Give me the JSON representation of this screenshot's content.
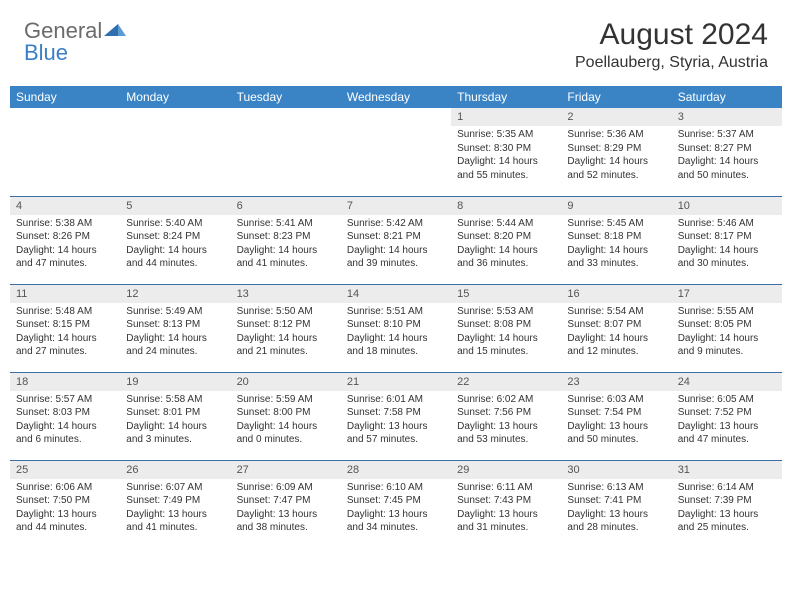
{
  "logo": {
    "text1": "General",
    "text2": "Blue"
  },
  "title": "August 2024",
  "location": "Poellauberg, Styria, Austria",
  "colors": {
    "header_bg": "#3a84c5",
    "header_text": "#ffffff",
    "daynum_bg": "#ececec",
    "row_border": "#3a6fa8",
    "logo_gray": "#6b6b6b",
    "logo_blue": "#3a7fc4",
    "text": "#333333"
  },
  "weekdays": [
    "Sunday",
    "Monday",
    "Tuesday",
    "Wednesday",
    "Thursday",
    "Friday",
    "Saturday"
  ],
  "weeks": [
    [
      null,
      null,
      null,
      null,
      {
        "n": "1",
        "sr": "Sunrise: 5:35 AM",
        "ss": "Sunset: 8:30 PM",
        "d1": "Daylight: 14 hours",
        "d2": "and 55 minutes."
      },
      {
        "n": "2",
        "sr": "Sunrise: 5:36 AM",
        "ss": "Sunset: 8:29 PM",
        "d1": "Daylight: 14 hours",
        "d2": "and 52 minutes."
      },
      {
        "n": "3",
        "sr": "Sunrise: 5:37 AM",
        "ss": "Sunset: 8:27 PM",
        "d1": "Daylight: 14 hours",
        "d2": "and 50 minutes."
      }
    ],
    [
      {
        "n": "4",
        "sr": "Sunrise: 5:38 AM",
        "ss": "Sunset: 8:26 PM",
        "d1": "Daylight: 14 hours",
        "d2": "and 47 minutes."
      },
      {
        "n": "5",
        "sr": "Sunrise: 5:40 AM",
        "ss": "Sunset: 8:24 PM",
        "d1": "Daylight: 14 hours",
        "d2": "and 44 minutes."
      },
      {
        "n": "6",
        "sr": "Sunrise: 5:41 AM",
        "ss": "Sunset: 8:23 PM",
        "d1": "Daylight: 14 hours",
        "d2": "and 41 minutes."
      },
      {
        "n": "7",
        "sr": "Sunrise: 5:42 AM",
        "ss": "Sunset: 8:21 PM",
        "d1": "Daylight: 14 hours",
        "d2": "and 39 minutes."
      },
      {
        "n": "8",
        "sr": "Sunrise: 5:44 AM",
        "ss": "Sunset: 8:20 PM",
        "d1": "Daylight: 14 hours",
        "d2": "and 36 minutes."
      },
      {
        "n": "9",
        "sr": "Sunrise: 5:45 AM",
        "ss": "Sunset: 8:18 PM",
        "d1": "Daylight: 14 hours",
        "d2": "and 33 minutes."
      },
      {
        "n": "10",
        "sr": "Sunrise: 5:46 AM",
        "ss": "Sunset: 8:17 PM",
        "d1": "Daylight: 14 hours",
        "d2": "and 30 minutes."
      }
    ],
    [
      {
        "n": "11",
        "sr": "Sunrise: 5:48 AM",
        "ss": "Sunset: 8:15 PM",
        "d1": "Daylight: 14 hours",
        "d2": "and 27 minutes."
      },
      {
        "n": "12",
        "sr": "Sunrise: 5:49 AM",
        "ss": "Sunset: 8:13 PM",
        "d1": "Daylight: 14 hours",
        "d2": "and 24 minutes."
      },
      {
        "n": "13",
        "sr": "Sunrise: 5:50 AM",
        "ss": "Sunset: 8:12 PM",
        "d1": "Daylight: 14 hours",
        "d2": "and 21 minutes."
      },
      {
        "n": "14",
        "sr": "Sunrise: 5:51 AM",
        "ss": "Sunset: 8:10 PM",
        "d1": "Daylight: 14 hours",
        "d2": "and 18 minutes."
      },
      {
        "n": "15",
        "sr": "Sunrise: 5:53 AM",
        "ss": "Sunset: 8:08 PM",
        "d1": "Daylight: 14 hours",
        "d2": "and 15 minutes."
      },
      {
        "n": "16",
        "sr": "Sunrise: 5:54 AM",
        "ss": "Sunset: 8:07 PM",
        "d1": "Daylight: 14 hours",
        "d2": "and 12 minutes."
      },
      {
        "n": "17",
        "sr": "Sunrise: 5:55 AM",
        "ss": "Sunset: 8:05 PM",
        "d1": "Daylight: 14 hours",
        "d2": "and 9 minutes."
      }
    ],
    [
      {
        "n": "18",
        "sr": "Sunrise: 5:57 AM",
        "ss": "Sunset: 8:03 PM",
        "d1": "Daylight: 14 hours",
        "d2": "and 6 minutes."
      },
      {
        "n": "19",
        "sr": "Sunrise: 5:58 AM",
        "ss": "Sunset: 8:01 PM",
        "d1": "Daylight: 14 hours",
        "d2": "and 3 minutes."
      },
      {
        "n": "20",
        "sr": "Sunrise: 5:59 AM",
        "ss": "Sunset: 8:00 PM",
        "d1": "Daylight: 14 hours",
        "d2": "and 0 minutes."
      },
      {
        "n": "21",
        "sr": "Sunrise: 6:01 AM",
        "ss": "Sunset: 7:58 PM",
        "d1": "Daylight: 13 hours",
        "d2": "and 57 minutes."
      },
      {
        "n": "22",
        "sr": "Sunrise: 6:02 AM",
        "ss": "Sunset: 7:56 PM",
        "d1": "Daylight: 13 hours",
        "d2": "and 53 minutes."
      },
      {
        "n": "23",
        "sr": "Sunrise: 6:03 AM",
        "ss": "Sunset: 7:54 PM",
        "d1": "Daylight: 13 hours",
        "d2": "and 50 minutes."
      },
      {
        "n": "24",
        "sr": "Sunrise: 6:05 AM",
        "ss": "Sunset: 7:52 PM",
        "d1": "Daylight: 13 hours",
        "d2": "and 47 minutes."
      }
    ],
    [
      {
        "n": "25",
        "sr": "Sunrise: 6:06 AM",
        "ss": "Sunset: 7:50 PM",
        "d1": "Daylight: 13 hours",
        "d2": "and 44 minutes."
      },
      {
        "n": "26",
        "sr": "Sunrise: 6:07 AM",
        "ss": "Sunset: 7:49 PM",
        "d1": "Daylight: 13 hours",
        "d2": "and 41 minutes."
      },
      {
        "n": "27",
        "sr": "Sunrise: 6:09 AM",
        "ss": "Sunset: 7:47 PM",
        "d1": "Daylight: 13 hours",
        "d2": "and 38 minutes."
      },
      {
        "n": "28",
        "sr": "Sunrise: 6:10 AM",
        "ss": "Sunset: 7:45 PM",
        "d1": "Daylight: 13 hours",
        "d2": "and 34 minutes."
      },
      {
        "n": "29",
        "sr": "Sunrise: 6:11 AM",
        "ss": "Sunset: 7:43 PM",
        "d1": "Daylight: 13 hours",
        "d2": "and 31 minutes."
      },
      {
        "n": "30",
        "sr": "Sunrise: 6:13 AM",
        "ss": "Sunset: 7:41 PM",
        "d1": "Daylight: 13 hours",
        "d2": "and 28 minutes."
      },
      {
        "n": "31",
        "sr": "Sunrise: 6:14 AM",
        "ss": "Sunset: 7:39 PM",
        "d1": "Daylight: 13 hours",
        "d2": "and 25 minutes."
      }
    ]
  ]
}
